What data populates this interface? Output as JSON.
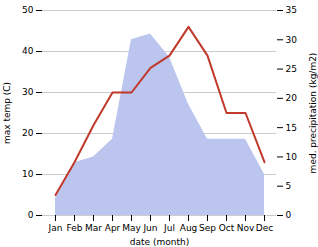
{
  "chart_data": {
    "type": "line",
    "categories": [
      "Jan",
      "Feb",
      "Mar",
      "Apr",
      "May",
      "Jun",
      "Jul",
      "Aug",
      "Sep",
      "Oct",
      "Nov",
      "Dec"
    ],
    "xlabel": "date (month)",
    "ylabel": "max temp (C)",
    "y2label": "med. precipitation (kg/m2)",
    "ylim": [
      0,
      50
    ],
    "yticks": [
      0,
      10,
      20,
      30,
      40,
      50
    ],
    "y2lim": [
      0,
      35
    ],
    "y2ticks": [
      0,
      5,
      10,
      15,
      20,
      25,
      30,
      35
    ],
    "grid": true,
    "series": [
      {
        "type": "area",
        "axis": "y2",
        "color": "#bbc5ee",
        "values": [
          3,
          9,
          10,
          13,
          30,
          31,
          27,
          19,
          13,
          13,
          13,
          7
        ]
      },
      {
        "type": "line",
        "color": "#c0392b",
        "values": [
          5,
          13,
          22,
          30,
          30,
          36,
          39,
          46,
          39,
          25,
          25,
          13
        ]
      }
    ]
  }
}
